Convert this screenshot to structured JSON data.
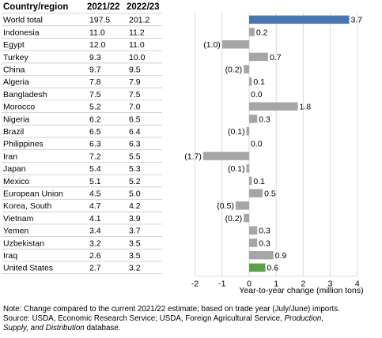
{
  "header": {
    "country": "Country/region",
    "year1": "2021/22",
    "year2": "2022/23"
  },
  "colors": {
    "world": "#4a76b0",
    "default": "#a6a6a6",
    "us": "#5aa14a",
    "grid": "#d9d9d9",
    "axis": "#000000"
  },
  "chart_data": {
    "type": "table",
    "rows": [
      {
        "country": "World total",
        "y2021": "197.5",
        "y2022": "201.2",
        "change": 3.7,
        "label": "3.7"
      },
      {
        "country": "Indonesia",
        "y2021": "11.0",
        "y2022": "11.2",
        "change": 0.2,
        "label": "0.2"
      },
      {
        "country": "Egypt",
        "y2021": "12.0",
        "y2022": "11.0",
        "change": -1.0,
        "label": "(1.0)"
      },
      {
        "country": "Turkey",
        "y2021": "9.3",
        "y2022": "10.0",
        "change": 0.7,
        "label": "0.7"
      },
      {
        "country": "China",
        "y2021": "9.7",
        "y2022": "9.5",
        "change": -0.2,
        "label": "(0.2)"
      },
      {
        "country": "Algeria",
        "y2021": "7.8",
        "y2022": "7.9",
        "change": 0.1,
        "label": "0.1"
      },
      {
        "country": "Bangladesh",
        "y2021": "7.5",
        "y2022": "7.5",
        "change": 0.0,
        "label": "0.0"
      },
      {
        "country": "Morocco",
        "y2021": "5.2",
        "y2022": "7.0",
        "change": 1.8,
        "label": "1.8"
      },
      {
        "country": "Nigeria",
        "y2021": "6.2",
        "y2022": "6.5",
        "change": 0.3,
        "label": "0.3"
      },
      {
        "country": "Brazil",
        "y2021": "6.5",
        "y2022": "6.4",
        "change": -0.1,
        "label": "(0.1)"
      },
      {
        "country": "Philippines",
        "y2021": "6.3",
        "y2022": "6.3",
        "change": 0.0,
        "label": "0.0"
      },
      {
        "country": "Iran",
        "y2021": "7.2",
        "y2022": "5.5",
        "change": -1.7,
        "label": "(1.7)"
      },
      {
        "country": "Japan",
        "y2021": "5.4",
        "y2022": "5.3",
        "change": -0.1,
        "label": "(0.1)"
      },
      {
        "country": "Mexico",
        "y2021": "5.1",
        "y2022": "5.2",
        "change": 0.1,
        "label": "0.1"
      },
      {
        "country": "European Union",
        "y2021": "4.5",
        "y2022": "5.0",
        "change": 0.5,
        "label": "0.5"
      },
      {
        "country": "Korea, South",
        "y2021": "4.7",
        "y2022": "4.2",
        "change": -0.5,
        "label": "(0.5)"
      },
      {
        "country": "Vietnam",
        "y2021": "4.1",
        "y2022": "3.9",
        "change": -0.2,
        "label": "(0.2)"
      },
      {
        "country": "Yemen",
        "y2021": "3.4",
        "y2022": "3.7",
        "change": 0.3,
        "label": "0.3"
      },
      {
        "country": "Uzbekistan",
        "y2021": "3.2",
        "y2022": "3.5",
        "change": 0.3,
        "label": "0.3"
      },
      {
        "country": "Iraq",
        "y2021": "2.6",
        "y2022": "3.5",
        "change": 0.9,
        "label": "0.9"
      },
      {
        "country": "United States",
        "y2021": "2.7",
        "y2022": "3.2",
        "change": 0.6,
        "label": "0.6"
      }
    ],
    "xlabel": "Year-to-year change (million tons)",
    "xlim": [
      -2,
      4
    ],
    "xticks": [
      -2,
      -1,
      0,
      1,
      2,
      3,
      4
    ],
    "grid": true
  },
  "note": {
    "line1": "Note: Change compared to the current 2021/22 estimate; based on trade year (July/June) imports.",
    "line2_start": "Source: USDA, Economic Research Service; USDA, Foreign Agricultural Service, ",
    "line2_italic": "Production,",
    "line3_italic": "Supply, and Distribution",
    "line3_end": " database."
  }
}
